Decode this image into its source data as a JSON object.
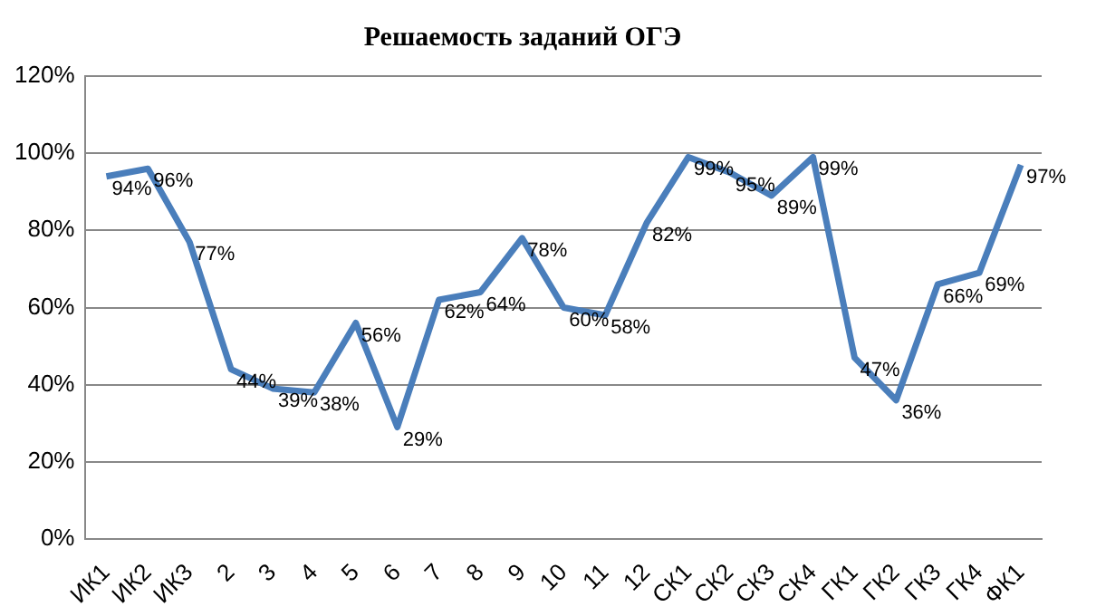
{
  "chart_data": {
    "type": "line",
    "title": "Решаемость заданий ОГЭ",
    "categories": [
      "ИК1",
      "ИК2",
      "ИК3",
      "2",
      "3",
      "4",
      "5",
      "6",
      "7",
      "8",
      "9",
      "10",
      "11",
      "12",
      "СК1",
      "СК2",
      "СК3",
      "СК4",
      "ГК1",
      "ГК2",
      "ГК3",
      "ГК4",
      "ФК1"
    ],
    "series": [
      {
        "color": "#4a7ebb",
        "values": [
          94,
          96,
          77,
          44,
          39,
          38,
          56,
          29,
          62,
          64,
          78,
          60,
          58,
          82,
          99,
          95,
          89,
          99,
          47,
          36,
          66,
          69,
          97
        ],
        "value_labels": [
          "94%",
          "96%",
          "77%",
          "44%",
          "39%",
          "38%",
          "56%",
          "29%",
          "62%",
          "64%",
          "78%",
          "60%",
          "58%",
          "82%",
          "99%",
          "95%",
          "89%",
          "99%",
          "47%",
          "36%",
          "66%",
          "69%",
          "97%"
        ]
      }
    ],
    "ylim": [
      0,
      120
    ],
    "yticks": [
      {
        "value": 0,
        "label": "0%"
      },
      {
        "value": 20,
        "label": "20%"
      },
      {
        "value": 40,
        "label": "40%"
      },
      {
        "value": 60,
        "label": "60%"
      },
      {
        "value": 80,
        "label": "80%"
      },
      {
        "value": 100,
        "label": "100%"
      },
      {
        "value": 120,
        "label": "120%"
      }
    ],
    "grid": "y",
    "legend": false,
    "marker": "none",
    "line_style": "solid"
  }
}
